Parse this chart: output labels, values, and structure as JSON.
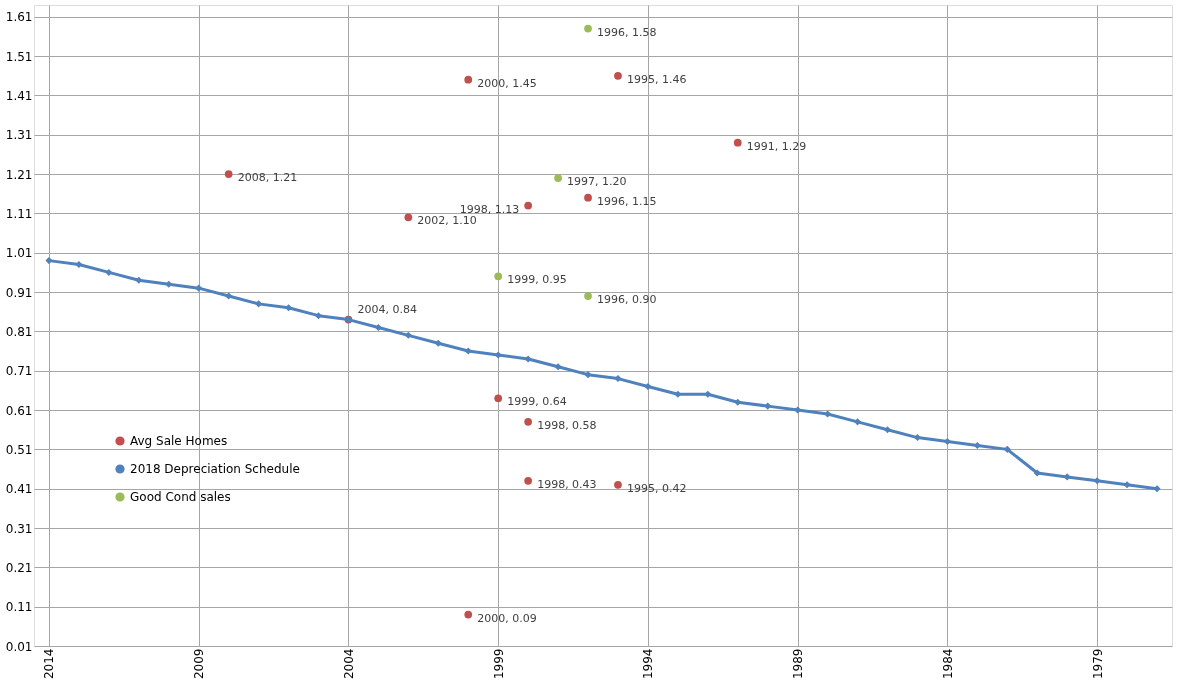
{
  "chart_data": {
    "type": "line",
    "xlim": [
      2014.5,
      1976.5
    ],
    "xticks": [
      2014,
      2009,
      2004,
      1999,
      1994,
      1989,
      1984,
      1979
    ],
    "ylim": [
      0.01,
      1.64
    ],
    "yticks": [
      0.01,
      0.11,
      0.21,
      0.31,
      0.41,
      0.51,
      0.61,
      0.71,
      0.81,
      0.91,
      1.01,
      1.11,
      1.21,
      1.31,
      1.41,
      1.51,
      1.61
    ],
    "grid": true,
    "legend": "left",
    "line_style": "solid",
    "series": [
      {
        "name": "Avg Sale Homes",
        "type": "scatter",
        "marker": "circle",
        "color": "#c0504d",
        "x": [
          2008,
          2000,
          1995,
          1991,
          1998,
          2002,
          1996,
          2004,
          1999,
          1998,
          1998,
          1995,
          2000
        ],
        "values": [
          1.21,
          1.45,
          1.46,
          1.29,
          1.13,
          1.1,
          1.15,
          0.84,
          0.64,
          0.58,
          0.43,
          0.42,
          0.09
        ],
        "value_labels": [
          "2008, 1.21",
          "2000, 1.45",
          "1995, 1.46",
          "1991, 1.29",
          "1998, 1.13",
          "2002, 1.10",
          "1996, 1.15",
          "2004, 0.84",
          "1999, 0.64",
          "1998, 0.58",
          "1998, 0.43",
          "1995, 0.42",
          "2000, 0.09"
        ]
      },
      {
        "name": "2018 Depreciation Schedule",
        "marker": "diamond",
        "color": "#4f81bd",
        "x": [
          2014,
          2013,
          2012,
          2011,
          2010,
          2009,
          2008,
          2007,
          2006,
          2005,
          2004,
          2003,
          2002,
          2001,
          2000,
          1999,
          1998,
          1997,
          1996,
          1995,
          1994,
          1993,
          1992,
          1991,
          1990,
          1989,
          1988,
          1987,
          1986,
          1985,
          1984,
          1983,
          1982,
          1981,
          1980,
          1979,
          1978,
          1977
        ],
        "values": [
          0.99,
          0.98,
          0.96,
          0.94,
          0.93,
          0.92,
          0.9,
          0.88,
          0.87,
          0.85,
          0.84,
          0.82,
          0.8,
          0.78,
          0.76,
          0.75,
          0.74,
          0.72,
          0.7,
          0.69,
          0.67,
          0.65,
          0.65,
          0.63,
          0.62,
          0.61,
          0.6,
          0.58,
          0.56,
          0.54,
          0.53,
          0.52,
          0.51,
          0.45,
          0.44,
          0.43,
          0.42,
          0.41
        ]
      },
      {
        "name": "Good Cond sales",
        "type": "scatter",
        "marker": "circle",
        "color": "#9bbb59",
        "x": [
          1996,
          1997,
          1999,
          1996
        ],
        "values": [
          1.58,
          1.2,
          0.95,
          0.9
        ],
        "value_labels": [
          "1996, 1.58",
          "1997, 1.20",
          "1999, 0.95",
          "1996, 0.90"
        ]
      }
    ]
  }
}
